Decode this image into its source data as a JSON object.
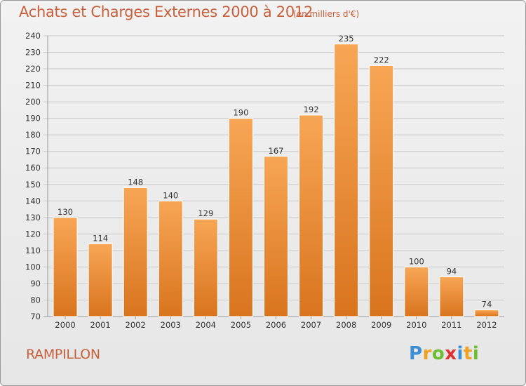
{
  "title": "Achats et Charges Externes 2000 à 2012",
  "subtitle": "(en milliers d'€)",
  "commune": "RAMPILLON",
  "logo": {
    "letters": [
      "P",
      "r",
      "o",
      "x",
      "i",
      "t",
      "i"
    ],
    "colors": [
      "#3b8fd6",
      "#f0a020",
      "#6abf2e",
      "#e03030",
      "#3b8fd6",
      "#f0a020",
      "#6abf2e"
    ]
  },
  "colors": {
    "title": "#c8603c",
    "bar_top": "#f7a655",
    "bar_bottom": "#d9741e",
    "grid": "#c9c9c9"
  },
  "chart_data": {
    "type": "bar",
    "categories": [
      "2000",
      "2001",
      "2002",
      "2003",
      "2004",
      "2005",
      "2006",
      "2007",
      "2008",
      "2009",
      "2010",
      "2011",
      "2012"
    ],
    "values": [
      130,
      114,
      148,
      140,
      129,
      190,
      167,
      192,
      235,
      222,
      100,
      94,
      74
    ],
    "ylim": [
      70,
      240
    ],
    "yticks": [
      70,
      80,
      90,
      100,
      110,
      120,
      130,
      140,
      150,
      160,
      170,
      180,
      190,
      200,
      210,
      220,
      230,
      240
    ],
    "grid": true,
    "xlabel": "",
    "ylabel": ""
  }
}
